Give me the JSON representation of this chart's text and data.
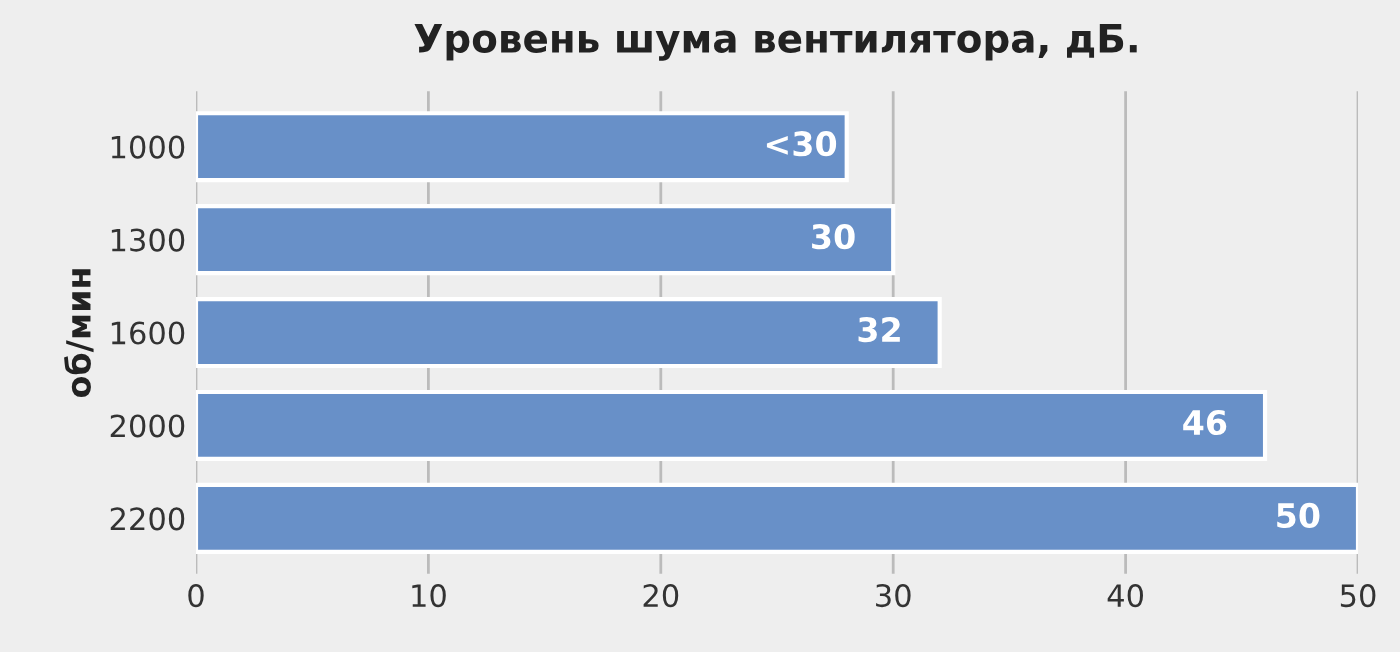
{
  "chart_data": {
    "type": "bar",
    "orientation": "horizontal",
    "title": "Уровень шума вентилятора, дБ.",
    "ylabel": "об/мин",
    "categories": [
      "1000",
      "1300",
      "1600",
      "2000",
      "2200"
    ],
    "values": [
      28,
      30,
      32,
      46,
      50
    ],
    "value_labels": [
      "<30",
      "30",
      "32",
      "46",
      "50"
    ],
    "color": "#6890c8",
    "xlim": [
      0,
      50
    ],
    "xticks": [
      0,
      10,
      20,
      30,
      40,
      50
    ],
    "grid": "x"
  }
}
